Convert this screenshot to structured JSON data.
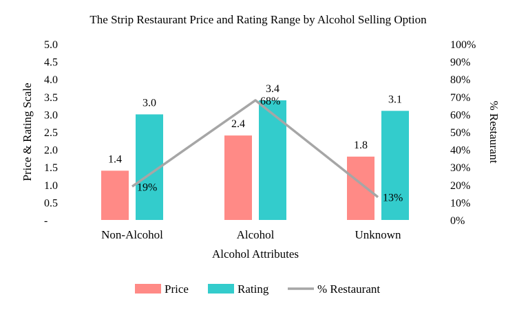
{
  "chart_data": {
    "type": "bar",
    "title": "The Strip Restaurant Price and Rating Range by Alcohol Selling Option",
    "xlabel": "Alcohol Attributes",
    "ylabel": "Price & Rating Scale",
    "y2label": "% Restaurant",
    "categories": [
      "Non-Alcohol",
      "Alcohol",
      "Unknown"
    ],
    "ylim": [
      0,
      5
    ],
    "y_ticks": [
      "-",
      "0.5",
      "1.0",
      "1.5",
      "2.0",
      "2.5",
      "3.0",
      "3.5",
      "4.0",
      "4.5",
      "5.0"
    ],
    "y2lim": [
      0,
      100
    ],
    "y2_ticks": [
      "0%",
      "10%",
      "20%",
      "30%",
      "40%",
      "50%",
      "60%",
      "70%",
      "80%",
      "90%",
      "100%"
    ],
    "series": [
      {
        "name": "Price",
        "kind": "bar",
        "axis": "left",
        "color": "#ff8a86",
        "values": [
          1.4,
          2.4,
          1.8
        ],
        "labels": [
          "1.4",
          "2.4",
          "1.8"
        ]
      },
      {
        "name": "Rating",
        "kind": "bar",
        "axis": "left",
        "color": "#33cccc",
        "values": [
          3.0,
          3.4,
          3.1
        ],
        "labels": [
          "3.0",
          "3.4",
          "3.1"
        ]
      },
      {
        "name": "% Restaurant",
        "kind": "line",
        "axis": "right",
        "color": "#a6a6a6",
        "values": [
          19,
          68,
          13
        ],
        "labels": [
          "19%",
          "68%",
          "13%"
        ]
      }
    ],
    "grid": false,
    "legend": "bottom"
  }
}
